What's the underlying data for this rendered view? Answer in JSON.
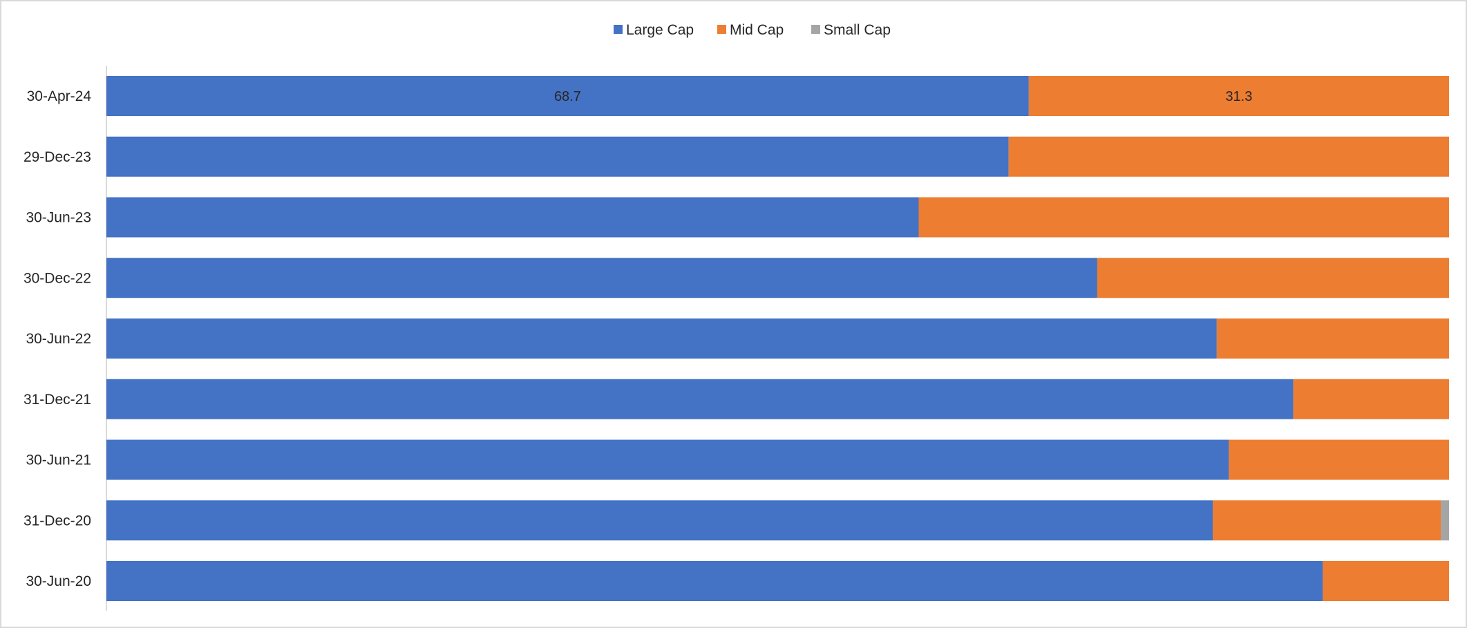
{
  "chart_data": {
    "type": "bar",
    "orientation": "horizontal",
    "stacked": "percent",
    "categories": [
      "30-Apr-24",
      "29-Dec-23",
      "30-Jun-23",
      "30-Dec-22",
      "30-Jun-22",
      "31-Dec-21",
      "30-Jun-21",
      "31-Dec-20",
      "30-Jun-20"
    ],
    "series": [
      {
        "name": "Large Cap",
        "color": "#4472C4",
        "values": [
          68.7,
          67.2,
          60.5,
          73.8,
          82.7,
          88.4,
          83.6,
          82.4,
          90.6
        ]
      },
      {
        "name": "Mid Cap",
        "color": "#ED7D31",
        "values": [
          31.3,
          32.8,
          39.5,
          26.2,
          17.3,
          11.6,
          16.4,
          17.0,
          9.4
        ]
      },
      {
        "name": "Small Cap",
        "color": "#A5A5A5",
        "values": [
          0,
          0,
          0,
          0,
          0,
          0,
          0,
          0.6,
          0
        ]
      }
    ],
    "data_labels": [
      {
        "category": "30-Apr-24",
        "series": "Large Cap",
        "text": "68.7"
      },
      {
        "category": "30-Apr-24",
        "series": "Mid Cap",
        "text": "31.3"
      }
    ],
    "xlim": [
      0,
      100
    ],
    "grid": false,
    "legend_position": "top-center",
    "title": "",
    "xlabel": "",
    "ylabel": ""
  }
}
